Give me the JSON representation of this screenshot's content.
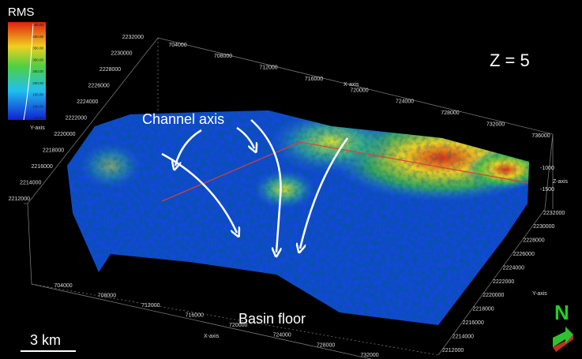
{
  "legend": {
    "title": "RMS",
    "ticks": [
      "450.00",
      "400.00",
      "350.00",
      "300.00",
      "250.00",
      "200.00",
      "150.00",
      "100.00",
      "50.00"
    ],
    "axis_label": "Y-axis"
  },
  "annotations": {
    "z_label": "Z = 5",
    "channel": "Channel axis",
    "basin": "Basin floor",
    "scale": "3 km",
    "north": "N"
  },
  "axes": {
    "y_top": {
      "ticks": [
        2232000,
        2230000,
        2228000,
        2226000,
        2224000,
        2222000,
        2220000,
        2218000,
        2216000,
        2214000,
        2212000
      ]
    },
    "x_top": {
      "label": "X-axis",
      "ticks": [
        704000,
        708000,
        712000,
        716000,
        720000,
        724000,
        728000,
        732000,
        736000
      ]
    },
    "z": {
      "label": "Z-axis",
      "ticks": [
        -1000,
        -1500
      ]
    },
    "y_right": {
      "label": "Y-axis",
      "ticks": [
        2232000,
        2230000,
        2228000,
        2226000,
        2224000,
        2222000,
        2220000,
        2218000,
        2216000,
        2214000,
        2212000
      ]
    },
    "x_bottom": {
      "label": "X-axis",
      "ticks": [
        704000,
        708000,
        712000,
        716000,
        720000,
        724000,
        728000,
        732000
      ]
    }
  }
}
